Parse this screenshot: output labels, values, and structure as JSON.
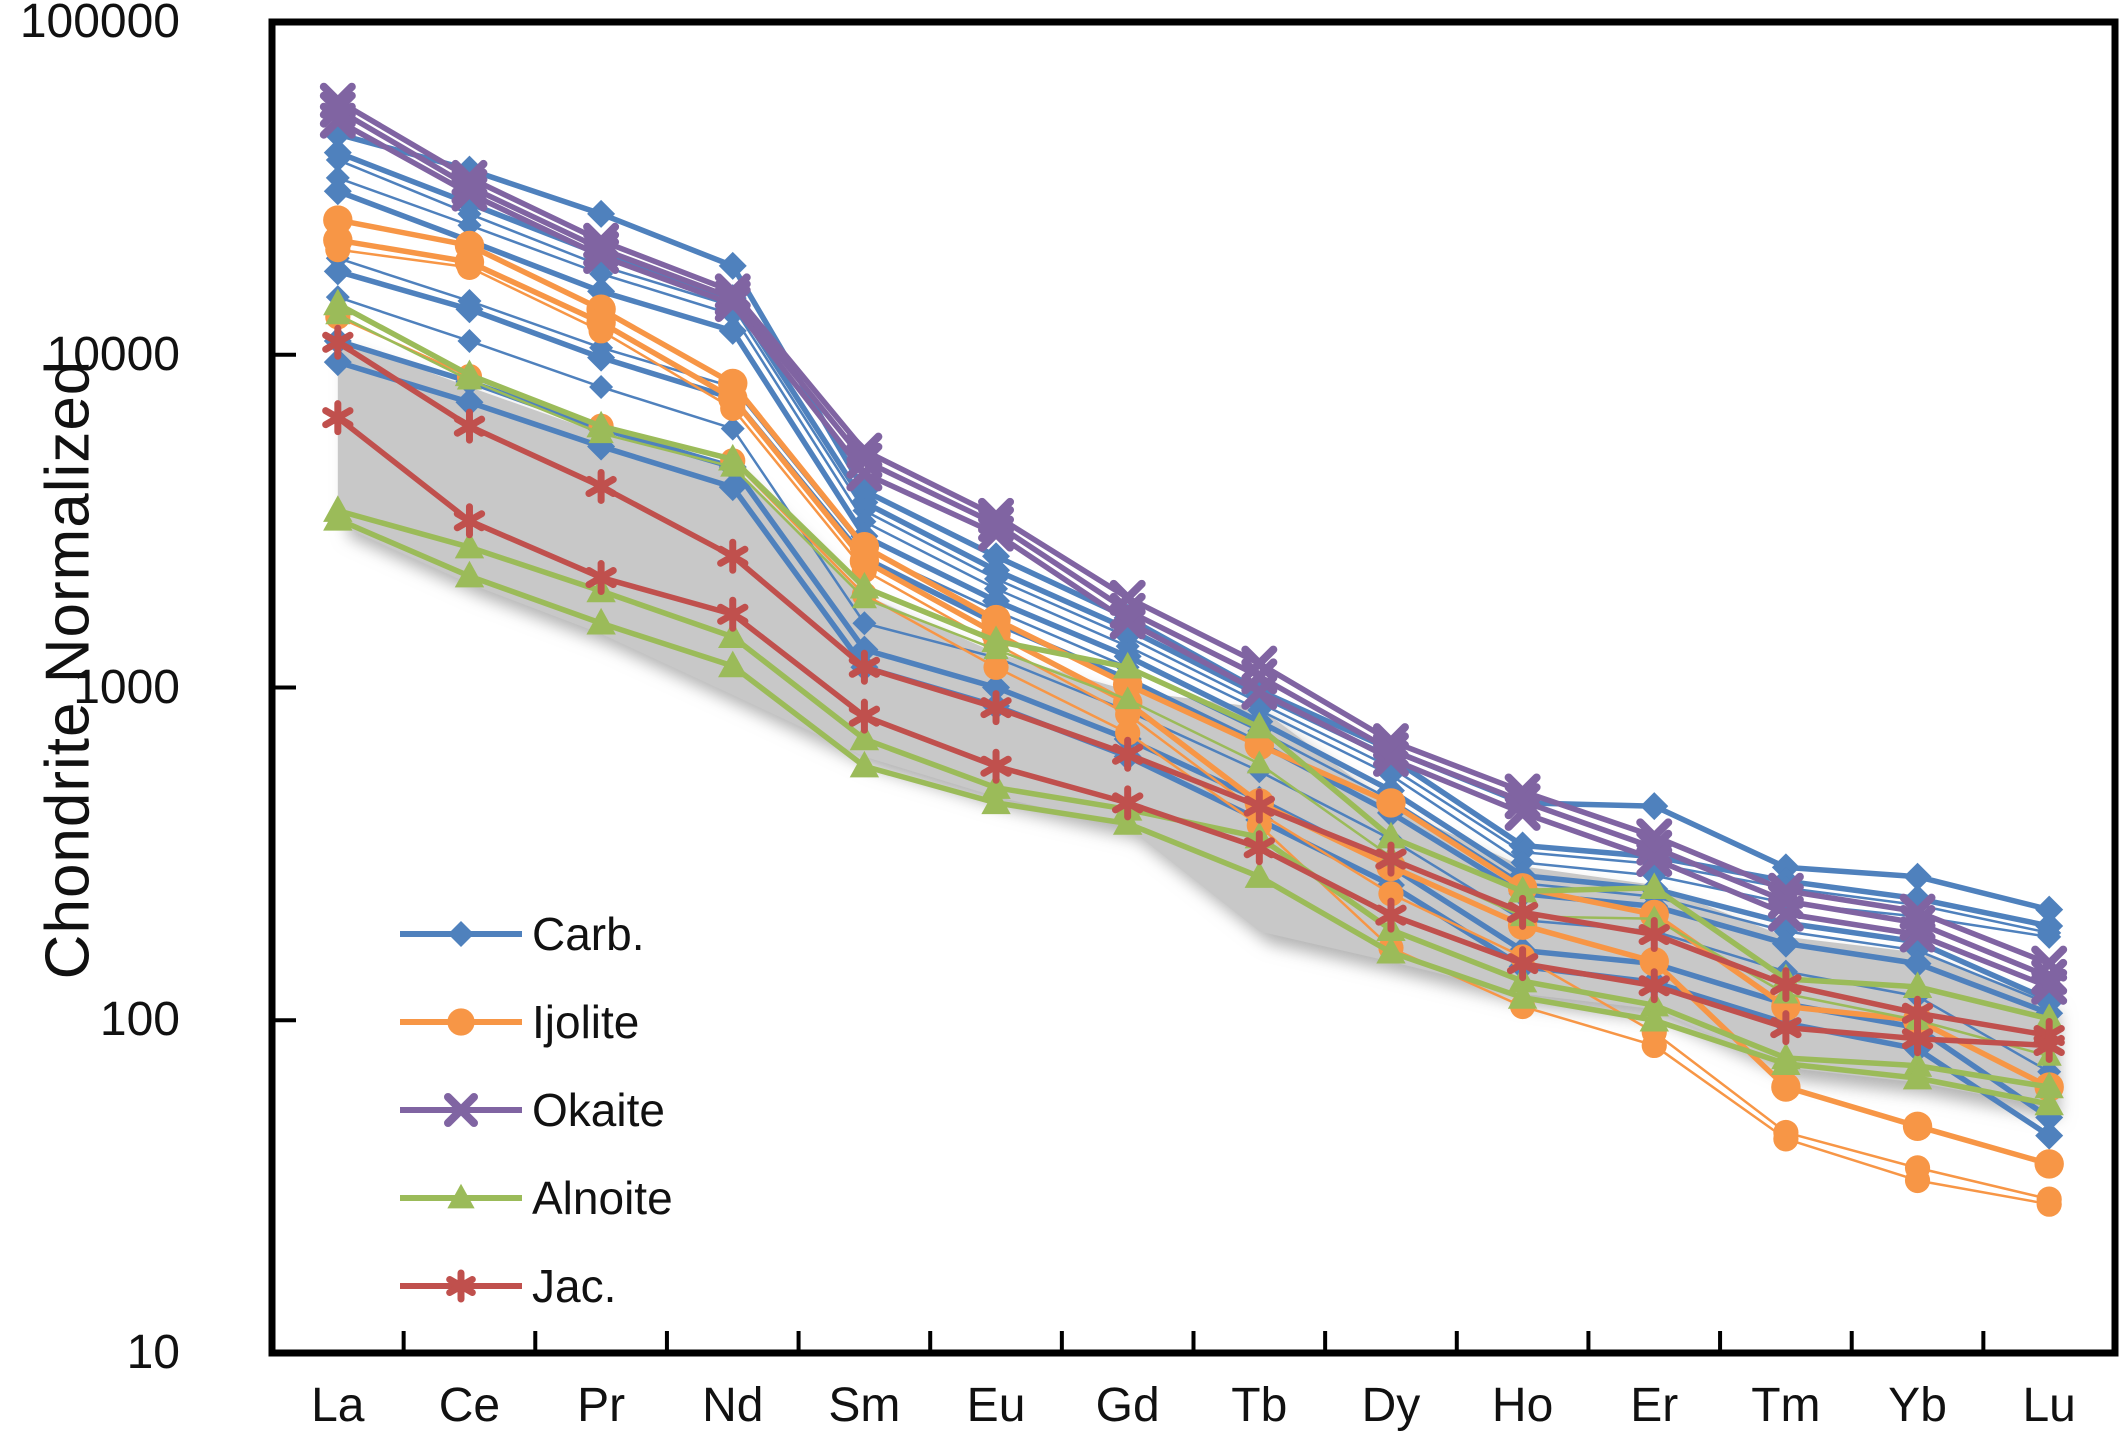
{
  "figure": {
    "background": "#ffffff",
    "frame_color": "#000000",
    "text_color": "#111111"
  },
  "chart_data": {
    "type": "line",
    "title": "",
    "xlabel": "",
    "ylabel": "Chondrite Normalized",
    "y_scale": "log",
    "ylim": [
      10,
      100000
    ],
    "y_ticks": [
      "10",
      "100",
      "1000",
      "10000",
      "100000"
    ],
    "grid": false,
    "legend_position": "inside-lower-left",
    "categories": [
      "La",
      "Ce",
      "Pr",
      "Nd",
      "Sm",
      "Eu",
      "Gd",
      "Tb",
      "Dy",
      "Ho",
      "Er",
      "Tm",
      "Yb",
      "Lu"
    ],
    "groups": [
      {
        "name": "Carb.",
        "color": "#4F81BD",
        "marker": "diamond"
      },
      {
        "name": "Ijolite",
        "color": "#F79646",
        "marker": "circle"
      },
      {
        "name": "Okaite",
        "color": "#8064A2",
        "marker": "x"
      },
      {
        "name": "Alnoite",
        "color": "#9BBB59",
        "marker": "triangle"
      },
      {
        "name": "Jac.",
        "color": "#C0504D",
        "marker": "asterisk"
      }
    ],
    "shaded_field": {
      "name": "gray-field",
      "color": "#C8C8C8",
      "top": [
        11200,
        8000,
        5800,
        4650,
        1900,
        1270,
        980,
        870,
        440,
        290,
        255,
        178,
        160,
        115
      ],
      "bottom": [
        3100,
        2050,
        1450,
        950,
        620,
        470,
        380,
        185,
        150,
        120,
        108,
        72,
        65,
        55
      ]
    },
    "series": [
      {
        "group": "Carb.",
        "thin": false,
        "values": [
          46000,
          36000,
          26500,
          18500,
          3900,
          2480,
          1620,
          980,
          650,
          450,
          440,
          288,
          270,
          215
        ]
      },
      {
        "group": "Carb.",
        "thin": false,
        "values": [
          40500,
          28500,
          20000,
          14800,
          3600,
          2250,
          1500,
          950,
          615,
          335,
          310,
          262,
          232,
          192
        ]
      },
      {
        "group": "Carb.",
        "thin": true,
        "values": [
          38500,
          26500,
          18500,
          14000,
          3400,
          2120,
          1420,
          900,
          575,
          320,
          295,
          250,
          222,
          183
        ]
      },
      {
        "group": "Carb.",
        "thin": true,
        "values": [
          34000,
          24500,
          17500,
          13200,
          3150,
          1980,
          1330,
          855,
          545,
          298,
          272,
          225,
          205,
          178
        ]
      },
      {
        "group": "Carb.",
        "thin": false,
        "values": [
          31000,
          22000,
          15500,
          11800,
          2850,
          1820,
          1240,
          790,
          490,
          272,
          248,
          196,
          172,
          115
        ]
      },
      {
        "group": "Carb.",
        "thin": true,
        "values": [
          19500,
          14500,
          10500,
          8000,
          2600,
          1700,
          1150,
          740,
          460,
          258,
          235,
          185,
          162,
          112
        ]
      },
      {
        "group": "Carb.",
        "thin": false,
        "values": [
          17800,
          13700,
          9800,
          7400,
          2450,
          1560,
          1060,
          680,
          420,
          240,
          220,
          170,
          148,
          105
        ]
      },
      {
        "group": "Carb.",
        "thin": true,
        "values": [
          14900,
          11000,
          8000,
          6000,
          1560,
          1230,
          850,
          560,
          350,
          200,
          185,
          140,
          118,
          70
        ]
      },
      {
        "group": "Carb.",
        "thin": false,
        "values": [
          11000,
          8300,
          6000,
          4600,
          1300,
          1000,
          700,
          460,
          290,
          162,
          148,
          112,
          95,
          51
        ]
      },
      {
        "group": "Carb.",
        "thin": false,
        "values": [
          9500,
          7200,
          5300,
          4000,
          1150,
          880,
          620,
          400,
          255,
          145,
          130,
          98,
          82,
          45
        ]
      },
      {
        "group": "Ijolite",
        "thin": false,
        "values": [
          25400,
          21300,
          13700,
          8200,
          2650,
          1600,
          1020,
          670,
          450,
          250,
          208,
          110,
          100,
          63
        ]
      },
      {
        "group": "Ijolite",
        "thin": false,
        "values": [
          22100,
          19000,
          12500,
          7400,
          2400,
          1450,
          900,
          450,
          290,
          193,
          150,
          63,
          48,
          37
        ]
      },
      {
        "group": "Ijolite",
        "thin": true,
        "values": [
          20700,
          18300,
          11800,
          6900,
          2250,
          1350,
          830,
          420,
          240,
          155,
          92,
          46,
          36,
          29
        ]
      },
      {
        "group": "Ijolite",
        "thin": true,
        "values": [
          13000,
          8600,
          6100,
          4800,
          1900,
          1150,
          730,
          385,
          165,
          110,
          84,
          44,
          33,
          28
        ]
      },
      {
        "group": "Okaite",
        "thin": false,
        "values": [
          58000,
          34000,
          22000,
          15500,
          5150,
          3280,
          1860,
          1180,
          690,
          487,
          357,
          245,
          212,
          148
        ]
      },
      {
        "group": "Okaite",
        "thin": false,
        "values": [
          54500,
          32000,
          20800,
          14800,
          4800,
          3100,
          1700,
          1080,
          648,
          455,
          330,
          228,
          196,
          135
        ]
      },
      {
        "group": "Okaite",
        "thin": false,
        "values": [
          50500,
          30500,
          19800,
          14200,
          4400,
          2900,
          1580,
          970,
          610,
          420,
          305,
          209,
          181,
          126
        ]
      },
      {
        "group": "Alnoite",
        "thin": false,
        "values": [
          14200,
          8700,
          6100,
          4850,
          2000,
          1380,
          1150,
          760,
          355,
          244,
          250,
          133,
          126,
          101
        ]
      },
      {
        "group": "Alnoite",
        "thin": true,
        "values": [
          13200,
          8400,
          5800,
          4600,
          1850,
          1300,
          920,
          590,
          310,
          205,
          202,
          120,
          100,
          78
        ]
      },
      {
        "group": "Alnoite",
        "thin": false,
        "values": [
          3400,
          2640,
          1950,
          1420,
          700,
          500,
          430,
          355,
          187,
          131,
          111,
          77,
          73,
          63
        ]
      },
      {
        "group": "Alnoite",
        "thin": false,
        "values": [
          3200,
          2160,
          1560,
          1160,
          580,
          450,
          390,
          270,
          160,
          117,
          100,
          74,
          67,
          56
        ]
      },
      {
        "group": "Jac.",
        "thin": false,
        "values": [
          10900,
          6100,
          4020,
          2480,
          1150,
          870,
          630,
          440,
          305,
          211,
          181,
          128,
          105,
          90
        ]
      },
      {
        "group": "Jac.",
        "thin": false,
        "values": [
          6470,
          3170,
          2140,
          1660,
          820,
          580,
          450,
          330,
          207,
          148,
          127,
          95,
          88,
          84
        ]
      }
    ]
  }
}
